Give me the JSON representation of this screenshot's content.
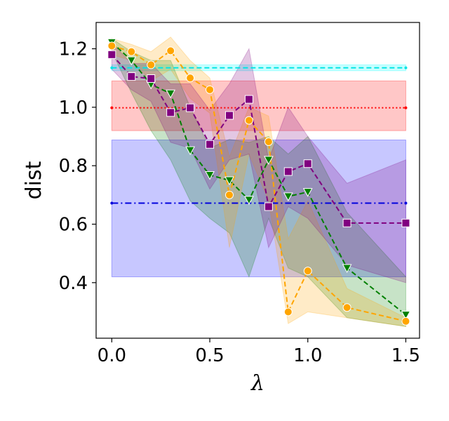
{
  "chart_data": {
    "type": "line",
    "xlabel": "λ",
    "ylabel": "dist",
    "xlim": [
      -0.08,
      1.57
    ],
    "ylim": [
      0.21,
      1.29
    ],
    "xticks": [
      "0.0",
      "0.5",
      "1.0",
      "1.5"
    ],
    "xtick_values": [
      0.0,
      0.5,
      1.0,
      1.5
    ],
    "yticks": [
      "0.4",
      "0.6",
      "0.8",
      "1.0",
      "1.2"
    ],
    "ytick_values": [
      0.4,
      0.6,
      0.8,
      1.0,
      1.2
    ],
    "grid": false,
    "legend": "none",
    "baselines": [
      {
        "color": "#0000dd",
        "style": "dashdot",
        "value": 0.672,
        "band": [
          0.42,
          0.888
        ],
        "band_color": "#0000ff",
        "x_range": [
          0.0,
          1.5
        ]
      },
      {
        "color": "#ff0000",
        "style": "dotted",
        "value": 0.998,
        "band": [
          0.92,
          1.09
        ],
        "band_color": "#ff0000",
        "x_range": [
          0.0,
          1.5
        ]
      },
      {
        "color": "#00e5e5",
        "style": "dashed",
        "value": 1.135,
        "band": [
          1.125,
          1.145
        ],
        "band_color": "#00ffff",
        "x_range": [
          0.0,
          1.5
        ]
      }
    ],
    "series": [
      {
        "color": "#008000",
        "marker": "triangle-down",
        "x": [
          0.0,
          0.1,
          0.2,
          0.3,
          0.4,
          0.5,
          0.6,
          0.7,
          0.8,
          0.9,
          1.0,
          1.2,
          1.5
        ],
        "y": [
          1.222,
          1.16,
          1.078,
          1.047,
          0.853,
          0.768,
          0.75,
          0.683,
          0.82,
          0.695,
          0.71,
          0.45,
          0.29
        ],
        "lower": [
          1.19,
          1.05,
          0.92,
          0.82,
          0.68,
          0.62,
          0.57,
          0.42,
          0.62,
          0.45,
          0.42,
          0.28,
          0.25
        ],
        "upper": [
          1.235,
          1.19,
          1.16,
          1.16,
          1.0,
          0.86,
          0.89,
          0.88,
          0.9,
          0.84,
          0.9,
          0.64,
          0.42
        ]
      },
      {
        "color": "#ffa500",
        "marker": "circle",
        "x": [
          0.0,
          0.1,
          0.2,
          0.3,
          0.4,
          0.5,
          0.6,
          0.7,
          0.8,
          0.9,
          1.0,
          1.2,
          1.5
        ],
        "y": [
          1.21,
          1.19,
          1.145,
          1.193,
          1.1,
          1.06,
          0.7,
          0.955,
          0.882,
          0.3,
          0.44,
          0.315,
          0.268
        ],
        "lower": [
          1.18,
          1.16,
          1.09,
          1.13,
          1.03,
          0.98,
          0.52,
          0.84,
          0.68,
          0.26,
          0.3,
          0.28,
          0.25
        ],
        "upper": [
          1.235,
          1.215,
          1.19,
          1.24,
          1.16,
          1.1,
          0.83,
          1.0,
          0.97,
          0.55,
          0.68,
          0.38,
          0.28
        ]
      },
      {
        "color": "#800080",
        "marker": "square",
        "x": [
          0.0,
          0.1,
          0.2,
          0.3,
          0.4,
          0.5,
          0.6,
          0.7,
          0.8,
          0.9,
          1.0,
          1.2,
          1.5
        ],
        "y": [
          1.18,
          1.105,
          1.098,
          0.982,
          0.998,
          0.873,
          0.972,
          1.027,
          0.66,
          0.78,
          0.807,
          0.604,
          0.604
        ],
        "lower": [
          1.13,
          1.06,
          1.02,
          0.88,
          0.86,
          0.72,
          0.82,
          0.84,
          0.52,
          0.66,
          0.62,
          0.46,
          0.4
        ],
        "upper": [
          1.22,
          1.15,
          1.15,
          1.08,
          1.08,
          0.99,
          1.08,
          1.2,
          0.82,
          1.0,
          0.9,
          0.74,
          0.82
        ]
      }
    ]
  }
}
